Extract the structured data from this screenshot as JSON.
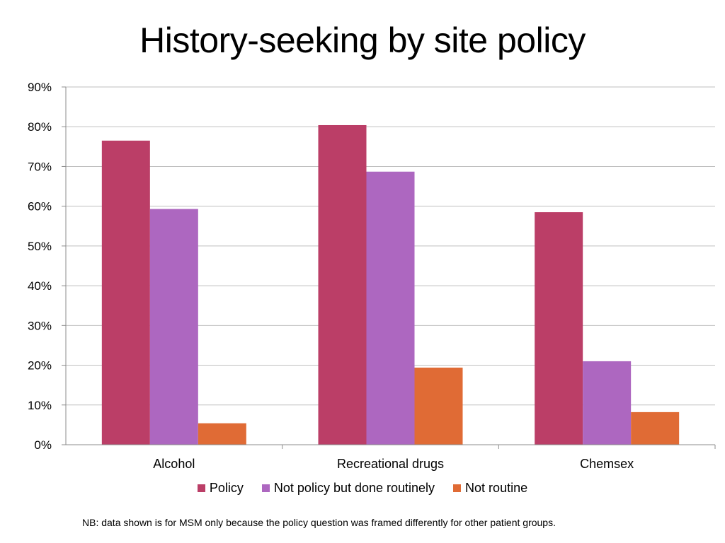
{
  "page": {
    "title": "History-seeking by site policy",
    "note": "NB: data shown is for MSM only because the policy question was framed differently for other patient groups."
  },
  "chart_data": {
    "type": "bar",
    "title": "",
    "xlabel": "",
    "ylabel": "",
    "categories": [
      "Alcohol",
      "Recreational drugs",
      "Chemsex"
    ],
    "series": [
      {
        "name": "Policy",
        "color": "#bb3e67",
        "values": [
          76.5,
          80.4,
          58.5
        ]
      },
      {
        "name": "Not policy but done routinely",
        "color": "#ad67c0",
        "values": [
          59.3,
          68.7,
          21.0
        ]
      },
      {
        "name": "Not routine",
        "color": "#e06b35",
        "values": [
          5.4,
          19.4,
          8.2
        ]
      }
    ],
    "ylim": [
      0,
      90
    ],
    "yticks": [
      0,
      10,
      20,
      30,
      40,
      50,
      60,
      70,
      80,
      90
    ],
    "ytick_labels": [
      "0%",
      "10%",
      "20%",
      "30%",
      "40%",
      "50%",
      "60%",
      "70%",
      "80%",
      "90%"
    ],
    "grid": true,
    "legend_position": "bottom"
  }
}
